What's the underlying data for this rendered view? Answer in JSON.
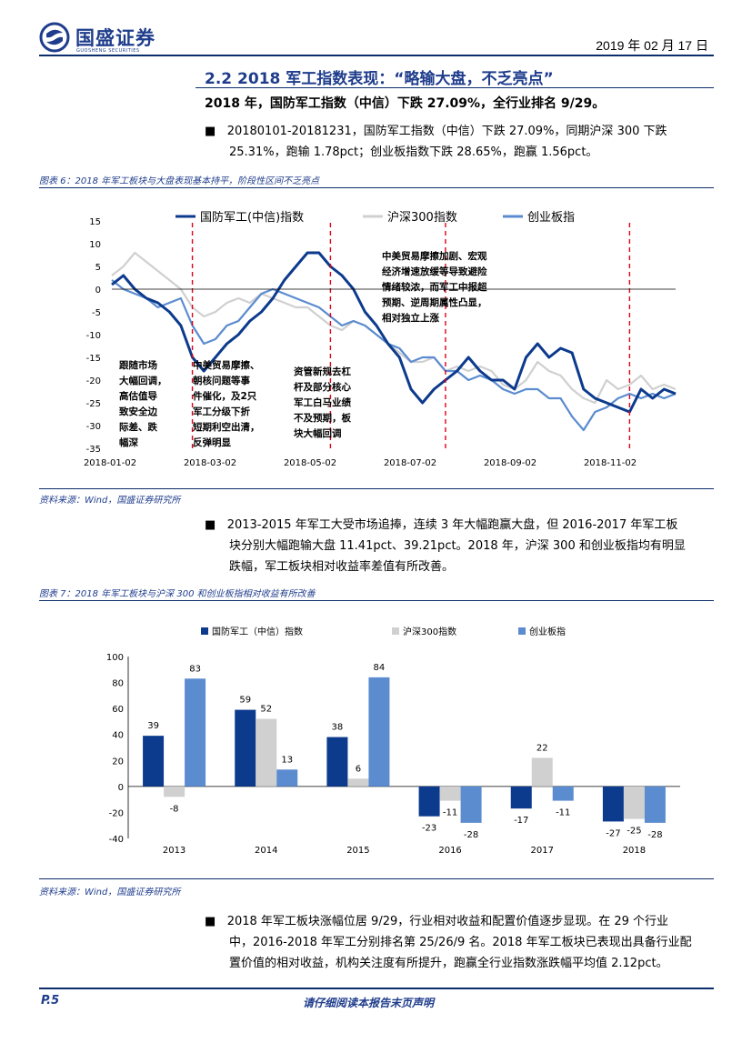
{
  "header": {
    "logo_text": "国盛证券",
    "logo_sub": "GUOSHENG SECURITIES",
    "date": "2019 年 02 月 17 日"
  },
  "section": {
    "title": "2.2 2018 军工指数表现：“略输大盘，不乏亮点”",
    "subtitle": "2018 年，国防军工指数（中信）下跌 27.09%，全行业排名 9/29。"
  },
  "paragraphs": {
    "p1_line1": "20180101-20181231，国防军工指数（中信）下跌 27.09%，同期沪深 300 下跌",
    "p1_line2": "25.31%，跑输 1.78pct；创业板指数下跌 28.65%，跑赢 1.56pct。",
    "p2_line1": "2013-2015 年军工大受市场追捧，连续 3 年大幅跑赢大盘，但 2016-2017 年军工板",
    "p2_line2": "块分别大幅跑输大盘 11.41pct、39.21pct。2018 年，沪深 300 和创业板指均有明显",
    "p2_line3": "跌幅，军工板块相对收益率差值有所改善。",
    "p3_line1": "2018 年军工板块涨幅位居 9/29，行业相对收益和配置价值逐步显现。在 29 个行业",
    "p3_line2": "中，2016-2018 年军工分别排名第 25/26/9 名。2018 年军工板块已表现出具备行业配",
    "p3_line3": "置价值的相对收益，机构关注度有所提升，跑赢全行业指数涨跌幅平均值 2.12pct。"
  },
  "bullet_glyph": "■",
  "figure6": {
    "title": "图表 6：2018 年军工板块与大盘表现基本持平，阶段性区间不乏亮点",
    "source": "资料来源：Wind，国盛证券研究所"
  },
  "figure7": {
    "title": "图表 7：2018 年军工板块与沪深 300 和创业板指相对收益有所改善",
    "source": "资料来源：Wind，国盛证券研究所"
  },
  "footer": {
    "page": "P.5",
    "disclaimer": "请仔细阅读本报告末页声明"
  },
  "colors": {
    "navy": "#0c3a8c",
    "gray": "#d0d0d0",
    "blue": "#5b8ccf",
    "red": "#e0001b"
  },
  "chart_data": [
    {
      "type": "line",
      "title": "",
      "legend": [
        "国防军工(中信)指数",
        "沪深300指数",
        "创业板指"
      ],
      "x_ticks": [
        "2018-01-02",
        "2018-03-02",
        "2018-05-02",
        "2018-07-02",
        "2018-09-02",
        "2018-11-02"
      ],
      "ylim": [
        -35,
        15
      ],
      "y_ticks": [
        15,
        10,
        5,
        0,
        -5,
        -10,
        -15,
        -20,
        -25,
        -30,
        -35
      ],
      "series": [
        {
          "name": "国防军工(中信)指数",
          "values": [
            1,
            3,
            0,
            -2,
            -3,
            -5,
            -8,
            -15,
            -18,
            -15,
            -12,
            -10,
            -7,
            -5,
            -2,
            2,
            5,
            8,
            8,
            5,
            3,
            0,
            -5,
            -8,
            -12,
            -15,
            -22,
            -25,
            -22,
            -20,
            -18,
            -15,
            -18,
            -20,
            -20,
            -22,
            -15,
            -12,
            -15,
            -13,
            -14,
            -22,
            -24,
            -25,
            -26,
            -27,
            -22,
            -24,
            -22,
            -23
          ]
        },
        {
          "name": "沪深300指数",
          "values": [
            3,
            5,
            8,
            6,
            4,
            2,
            0,
            -4,
            -6,
            -5,
            -3,
            -2,
            -3,
            -1,
            -2,
            -3,
            -4,
            -4,
            -6,
            -8,
            -9,
            -7,
            -8,
            -10,
            -12,
            -14,
            -16,
            -16,
            -15,
            -18,
            -17,
            -18,
            -17,
            -18,
            -21,
            -22,
            -20,
            -16,
            -18,
            -19,
            -22,
            -24,
            -25,
            -20,
            -22,
            -21,
            -19,
            -22,
            -21,
            -22
          ]
        },
        {
          "name": "创业板指",
          "values": [
            2,
            0,
            -1,
            -2,
            -4,
            -3,
            -2,
            -8,
            -12,
            -11,
            -8,
            -7,
            -4,
            -1,
            0,
            -1,
            -2,
            -3,
            -4,
            -6,
            -8,
            -7,
            -8,
            -10,
            -12,
            -13,
            -16,
            -15,
            -15,
            -18,
            -18,
            -20,
            -19,
            -20,
            -22,
            -23,
            -22,
            -22,
            -24,
            -24,
            -28,
            -31,
            -27,
            -26,
            -24,
            -23,
            -24,
            -23,
            -24,
            -23
          ]
        }
      ],
      "vlines_x_index": [
        7,
        19,
        29,
        45
      ],
      "annotations": [
        "跟随市场\n大幅回调，\n高估值导\n致安全边\n际差、跌\n幅深",
        "中美贸易摩擦、\n朝核问题等事\n件催化，及2只\n军工分级下折\n短期利空出清，\n反弹明显",
        "资管新规去杠\n杆及部分核心\n军工白马业绩\n不及预期，板\n块大幅回调",
        "中美贸易摩擦加剧、宏观\n经济增速放缓等导致避险\n情绪较浓，而军工中报超\n预期、逆周期属性凸显，\n相对独立上涨"
      ]
    },
    {
      "type": "bar",
      "title": "",
      "categories": [
        "2013",
        "2014",
        "2015",
        "2016",
        "2017",
        "2018"
      ],
      "series": [
        {
          "name": "国防军工（中信）指数",
          "values": [
            39,
            59,
            38,
            -23,
            -17,
            -27
          ]
        },
        {
          "name": "沪深300指数",
          "values": [
            -8,
            52,
            6,
            -11,
            22,
            -25
          ]
        },
        {
          "name": "创业板指",
          "values": [
            83,
            13,
            84,
            -28,
            -11,
            -28
          ]
        }
      ],
      "ylim": [
        -40,
        100
      ],
      "y_ticks": [
        100,
        80,
        60,
        40,
        20,
        0,
        -20,
        -40
      ]
    }
  ]
}
